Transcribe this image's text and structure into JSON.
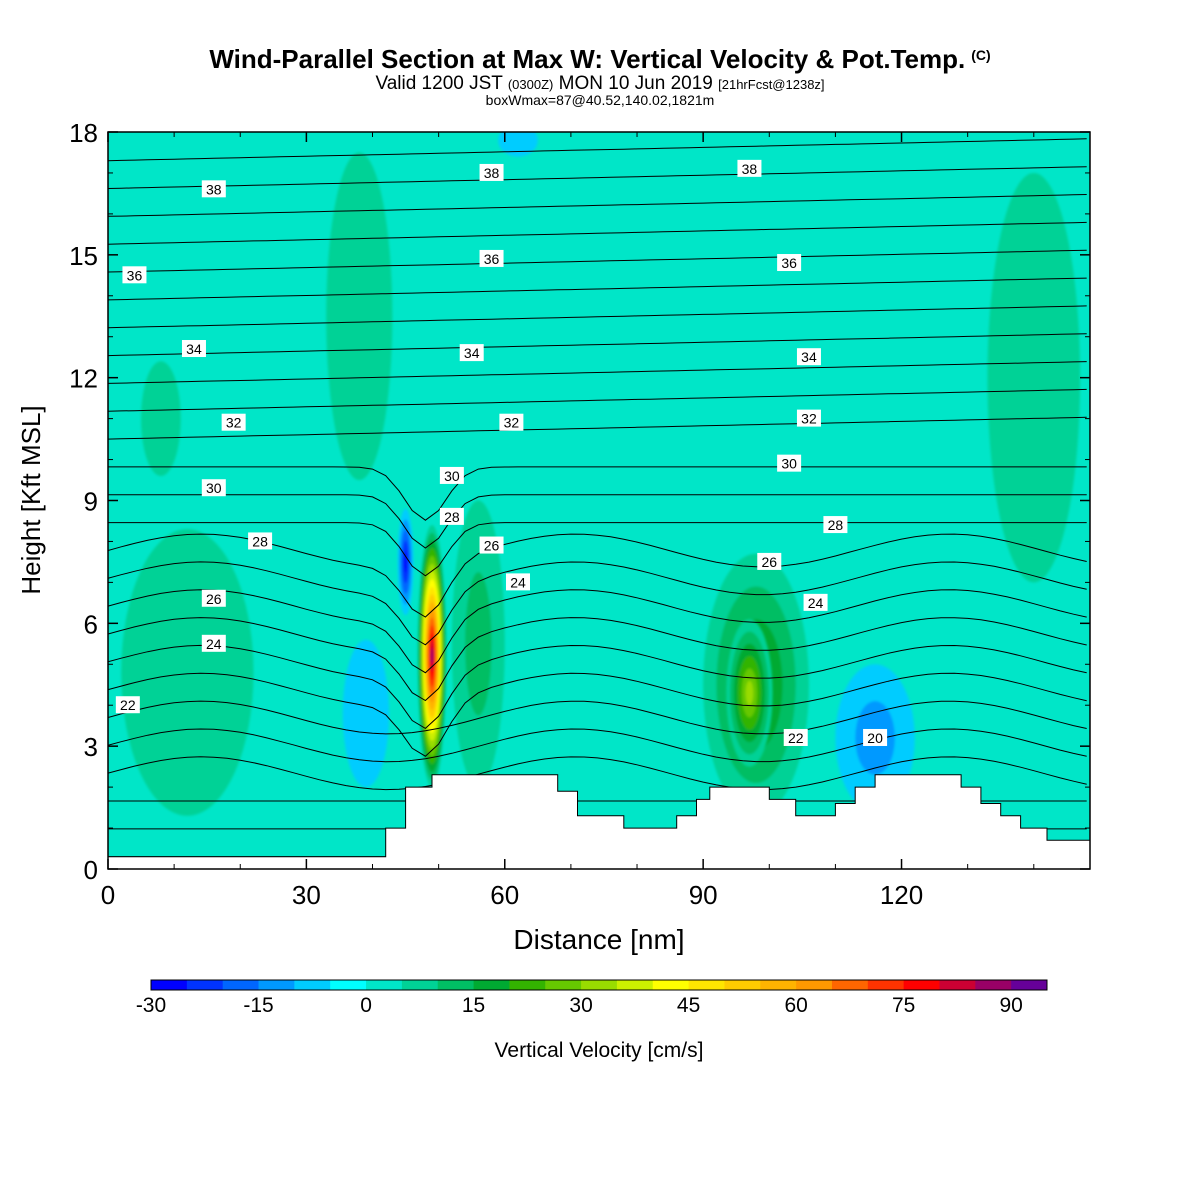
{
  "title": {
    "main": "Wind-Parallel Section at Max W: Vertical Velocity & Pot.Temp.",
    "copyright": "(C)",
    "valid_prefix": "Valid 1200 JST",
    "valid_utc": "(0300Z)",
    "valid_date": "MON 10 Jun 2019",
    "forecast": "[21hrFcst@1238z]",
    "box_info": "boxWmax=87@40.52,140.02,1821m"
  },
  "chart_data": {
    "type": "heatmap",
    "xlabel": "Distance [nm]",
    "ylabel": "Height [Kft MSL]",
    "xlim": [
      0,
      148.5
    ],
    "ylim": [
      0,
      18
    ],
    "x_ticks": [
      "0",
      "30",
      "60",
      "90",
      "120"
    ],
    "y_ticks": [
      "0",
      "3",
      "6",
      "9",
      "12",
      "15",
      "18"
    ],
    "colorbar": {
      "label": "Vertical Velocity [cm/s]",
      "tick_labels": [
        "-30",
        "-15",
        "0",
        "15",
        "30",
        "45",
        "60",
        "75",
        "90"
      ],
      "range": [
        -30,
        95
      ],
      "step": 5,
      "colors": [
        "#0000ff",
        "#0033ff",
        "#0066ff",
        "#0099ff",
        "#00ccff",
        "#00ffff",
        "#00e6c8",
        "#00d296",
        "#00be64",
        "#00aa32",
        "#33b400",
        "#66c800",
        "#99dc00",
        "#ccf000",
        "#ffff00",
        "#ffe600",
        "#ffcc00",
        "#ffb300",
        "#ff9900",
        "#ff6600",
        "#ff3300",
        "#ff0000",
        "#cc0033",
        "#990066",
        "#660099"
      ]
    },
    "theta_contour_labels": [
      {
        "value": "38",
        "x": 16,
        "y": 16.6
      },
      {
        "value": "38",
        "x": 58,
        "y": 17.0
      },
      {
        "value": "38",
        "x": 97,
        "y": 17.1
      },
      {
        "value": "36",
        "x": 4,
        "y": 14.5
      },
      {
        "value": "36",
        "x": 58,
        "y": 14.9
      },
      {
        "value": "36",
        "x": 103,
        "y": 14.8
      },
      {
        "value": "34",
        "x": 13,
        "y": 12.7
      },
      {
        "value": "34",
        "x": 55,
        "y": 12.6
      },
      {
        "value": "34",
        "x": 106,
        "y": 12.5
      },
      {
        "value": "32",
        "x": 19,
        "y": 10.9
      },
      {
        "value": "32",
        "x": 61,
        "y": 10.9
      },
      {
        "value": "32",
        "x": 106,
        "y": 11.0
      },
      {
        "value": "30",
        "x": 16,
        "y": 9.3
      },
      {
        "value": "30",
        "x": 52,
        "y": 9.6
      },
      {
        "value": "30",
        "x": 103,
        "y": 9.9
      },
      {
        "value": "28",
        "x": 23,
        "y": 8.0
      },
      {
        "value": "28",
        "x": 52,
        "y": 8.6
      },
      {
        "value": "28",
        "x": 110,
        "y": 8.4
      },
      {
        "value": "26",
        "x": 16,
        "y": 6.6
      },
      {
        "value": "26",
        "x": 58,
        "y": 7.9
      },
      {
        "value": "26",
        "x": 100,
        "y": 7.5
      },
      {
        "value": "24",
        "x": 16,
        "y": 5.5
      },
      {
        "value": "24",
        "x": 62,
        "y": 7.0
      },
      {
        "value": "24",
        "x": 107,
        "y": 6.5
      },
      {
        "value": "22",
        "x": 3,
        "y": 4.0
      },
      {
        "value": "22",
        "x": 104,
        "y": 3.2
      },
      {
        "value": "20",
        "x": 116,
        "y": 3.2
      }
    ],
    "vertical_velocity_features": [
      {
        "x": 49,
        "y": 5.2,
        "rx": 2.2,
        "ry": 3.2,
        "w": 87
      },
      {
        "x": 45,
        "y": 7.5,
        "rx": 1.2,
        "ry": 1.3,
        "w": -25
      },
      {
        "x": 98,
        "y": 4.5,
        "rx": 8,
        "ry": 3.2,
        "w": 18
      },
      {
        "x": 97,
        "y": 4.3,
        "rx": 3.5,
        "ry": 1.8,
        "w": 28
      },
      {
        "x": 56,
        "y": 5.5,
        "rx": 4,
        "ry": 3.5,
        "w": 8
      },
      {
        "x": 116,
        "y": 3.2,
        "rx": 6,
        "ry": 1.8,
        "w": -8
      },
      {
        "x": 39,
        "y": 3.8,
        "rx": 3.5,
        "ry": 1.8,
        "w": -5
      },
      {
        "x": 12,
        "y": 4.8,
        "rx": 10,
        "ry": 3.5,
        "w": 3
      },
      {
        "x": 38,
        "y": 13.5,
        "rx": 5,
        "ry": 4,
        "w": 3
      },
      {
        "x": 140,
        "y": 12,
        "rx": 7,
        "ry": 5,
        "w": 3
      },
      {
        "x": 8,
        "y": 11,
        "rx": 3,
        "ry": 1.4,
        "w": 3
      },
      {
        "x": 62,
        "y": 17.8,
        "rx": 3,
        "ry": 0.4,
        "w": -2
      }
    ],
    "terrain": [
      [
        0,
        0.3
      ],
      [
        42,
        0.3
      ],
      [
        42,
        1.0
      ],
      [
        45,
        1.0
      ],
      [
        45,
        2.0
      ],
      [
        49,
        2.0
      ],
      [
        49,
        2.3
      ],
      [
        68,
        2.3
      ],
      [
        68,
        1.9
      ],
      [
        71,
        1.9
      ],
      [
        71,
        1.3
      ],
      [
        78,
        1.3
      ],
      [
        78,
        1.0
      ],
      [
        86,
        1.0
      ],
      [
        86,
        1.3
      ],
      [
        89,
        1.3
      ],
      [
        89,
        1.7
      ],
      [
        91,
        1.7
      ],
      [
        91,
        2.0
      ],
      [
        100,
        2.0
      ],
      [
        100,
        1.7
      ],
      [
        104,
        1.7
      ],
      [
        104,
        1.3
      ],
      [
        110,
        1.3
      ],
      [
        110,
        1.6
      ],
      [
        113,
        1.6
      ],
      [
        113,
        2.0
      ],
      [
        116,
        2.0
      ],
      [
        116,
        2.3
      ],
      [
        129,
        2.3
      ],
      [
        129,
        2.0
      ],
      [
        132,
        2.0
      ],
      [
        132,
        1.6
      ],
      [
        135,
        1.6
      ],
      [
        135,
        1.3
      ],
      [
        138,
        1.3
      ],
      [
        138,
        1.0
      ],
      [
        142,
        1.0
      ],
      [
        142,
        0.7
      ],
      [
        148.5,
        0.7
      ]
    ]
  }
}
